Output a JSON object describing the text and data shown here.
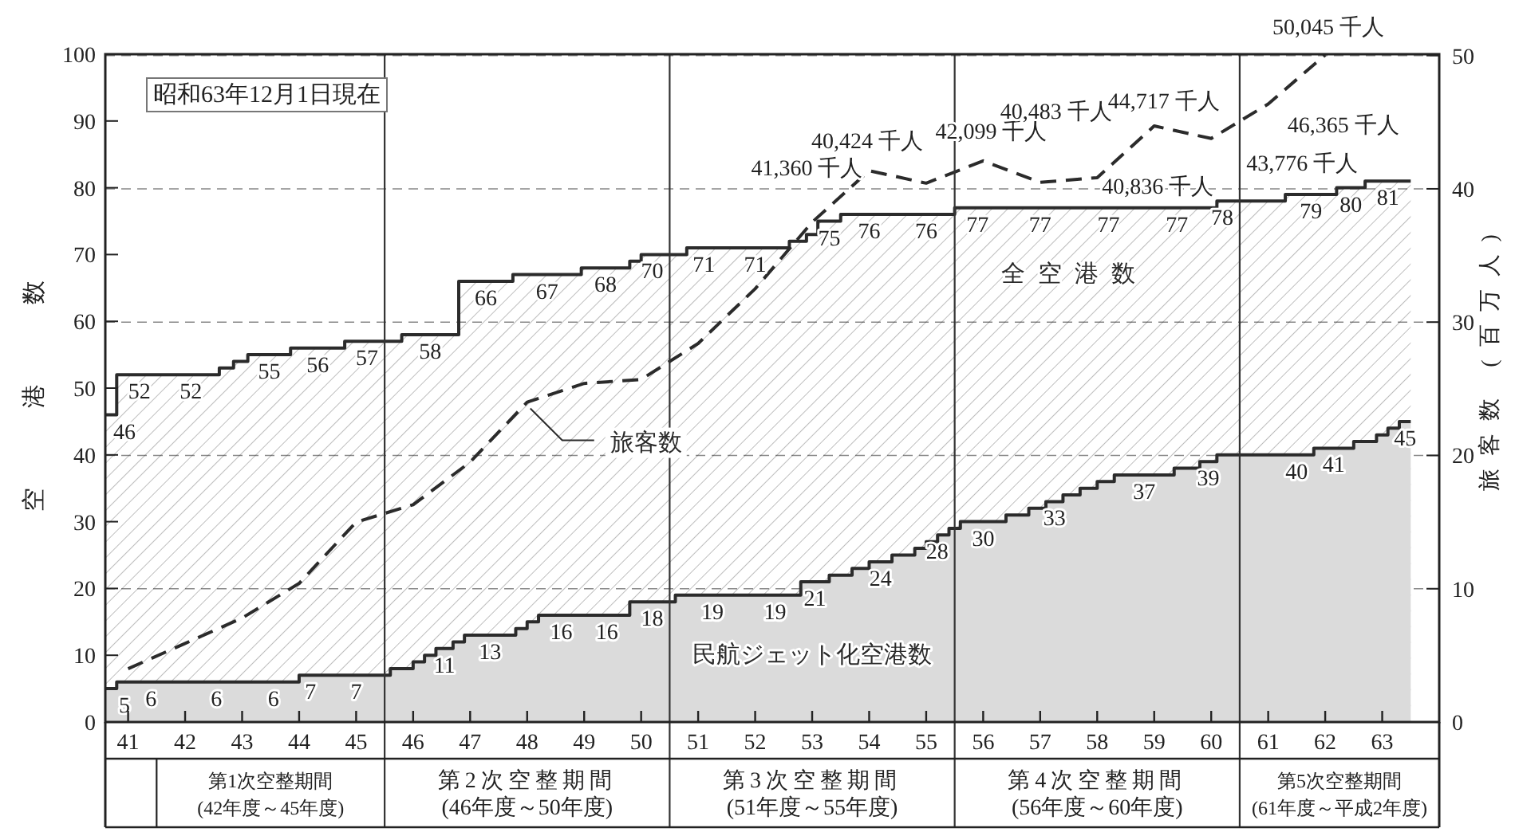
{
  "chart_data": {
    "type": "step",
    "xlim": [
      40.6,
      64.0
    ],
    "xticks": [
      41,
      42,
      43,
      44,
      45,
      46,
      47,
      48,
      49,
      50,
      51,
      52,
      53,
      54,
      55,
      56,
      57,
      58,
      59,
      60,
      61,
      62,
      63
    ],
    "ylim": [
      0,
      100
    ],
    "yticks": [
      0,
      10,
      20,
      30,
      40,
      50,
      60,
      70,
      80,
      90,
      100
    ],
    "y2lim": [
      0,
      50.1
    ],
    "y2ticks": [
      0,
      10,
      20,
      30,
      40,
      50
    ],
    "ylabel": "空港数",
    "y2label": "旅客数 (百万人)",
    "grid": "y2",
    "ref_lines": [
      {
        "axis": "x",
        "value": 45.5
      },
      {
        "axis": "x",
        "value": 50.5
      },
      {
        "axis": "x",
        "value": 55.5
      },
      {
        "axis": "x",
        "value": 60.5
      }
    ],
    "annotations": [
      "昭和63年12月1日現在",
      "第1次空整期間\n(42年度～45年度)",
      "第2次空整期間\n(46年度～50年度)",
      "第3次空整期間\n(51年度～55年度)",
      "第4次空整期間\n(56年度～60年度)",
      "第5次空整期間\n(61年度～平成2年度)",
      "41,360 千人",
      "40,424 千人",
      "42,099 千人",
      "40,483 千人",
      "40,836 千人",
      "44,717 千人",
      "43,776 千人",
      "46,365 千人",
      "50,045 千人"
    ],
    "series": [
      {
        "name": "全空港数",
        "color": "#2b2b2b",
        "x": [
          40.6,
          40.8,
          41.6,
          42.6,
          42.85,
          43.1,
          43.85,
          44.8,
          45.8,
          46.8,
          47.75,
          48.95,
          49.8,
          50.0,
          50.8,
          51.4,
          52.6,
          52.9,
          53.1,
          53.5,
          54.5,
          55.5,
          56.3,
          57.7,
          58.7,
          60.1,
          60.7,
          61.3,
          62.2,
          62.7,
          63.5
        ],
        "values": [
          46,
          52,
          52,
          53,
          54,
          55,
          56,
          57,
          58,
          66,
          67,
          68,
          69,
          70,
          71,
          71,
          72,
          73,
          75,
          76,
          76,
          77,
          77,
          77,
          77,
          78,
          78,
          79,
          80,
          81,
          81
        ],
        "value_labels": [
          "46",
          "52",
          "52",
          null,
          null,
          "55",
          "56",
          "57",
          "58",
          "66",
          "67",
          "68",
          null,
          "70",
          "71",
          "71",
          null,
          null,
          "75",
          "76",
          "76",
          "77",
          "77",
          "77",
          "77",
          "78",
          null,
          "79",
          "80",
          "81",
          null
        ]
      },
      {
        "name": "民航ジェット化空港数",
        "color": "#2b2b2b",
        "x": [
          40.6,
          40.8,
          42.0,
          43.1,
          44.0,
          44.4,
          45.6,
          46.0,
          46.2,
          46.4,
          46.7,
          46.9,
          47.8,
          48.0,
          48.2,
          49.0,
          49.8,
          50.6,
          51.9,
          52.8,
          53.3,
          53.7,
          54.0,
          54.4,
          54.8,
          55.0,
          55.2,
          55.4,
          55.6,
          56.4,
          56.8,
          57.1,
          57.4,
          57.7,
          58.0,
          58.3,
          59.35,
          59.8,
          60.1,
          61.2,
          61.8,
          62.5,
          62.9,
          63.1,
          63.3,
          63.5
        ],
        "values": [
          5,
          6,
          6,
          6,
          7,
          7,
          8,
          9,
          10,
          11,
          12,
          13,
          14,
          15,
          16,
          16,
          18,
          19,
          19,
          21,
          22,
          23,
          24,
          25,
          26,
          27,
          28,
          29,
          30,
          31,
          32,
          33,
          34,
          35,
          36,
          37,
          38,
          39,
          40,
          40,
          41,
          42,
          43,
          44,
          45,
          45
        ],
        "value_labels": [
          "5",
          "6",
          "6",
          "6",
          "7",
          "7",
          null,
          null,
          null,
          "11",
          null,
          "13",
          null,
          null,
          "16",
          "16",
          "18",
          "19",
          "19",
          "21",
          null,
          null,
          "24",
          null,
          null,
          null,
          "28",
          null,
          "30",
          null,
          null,
          "33",
          null,
          null,
          null,
          "37",
          null,
          "39",
          null,
          "40",
          "41",
          null,
          null,
          null,
          "45",
          null
        ]
      },
      {
        "name": "旅客数",
        "type": "line",
        "axis": "y2",
        "line_style": "dashed",
        "color": "#2b2b2b",
        "x": [
          41,
          42,
          43,
          44,
          45,
          46,
          47,
          48,
          49,
          50,
          51,
          52,
          53,
          54,
          55,
          56,
          57,
          58,
          59,
          60,
          61,
          62
        ],
        "values": [
          4.0,
          5.9,
          7.8,
          10.4,
          15.0,
          16.3,
          19.5,
          24.0,
          25.4,
          25.7,
          28.4,
          32.5,
          37.5,
          41.36,
          40.424,
          42.099,
          40.483,
          40.836,
          44.717,
          43.776,
          46.365,
          50.045
        ]
      }
    ]
  }
}
